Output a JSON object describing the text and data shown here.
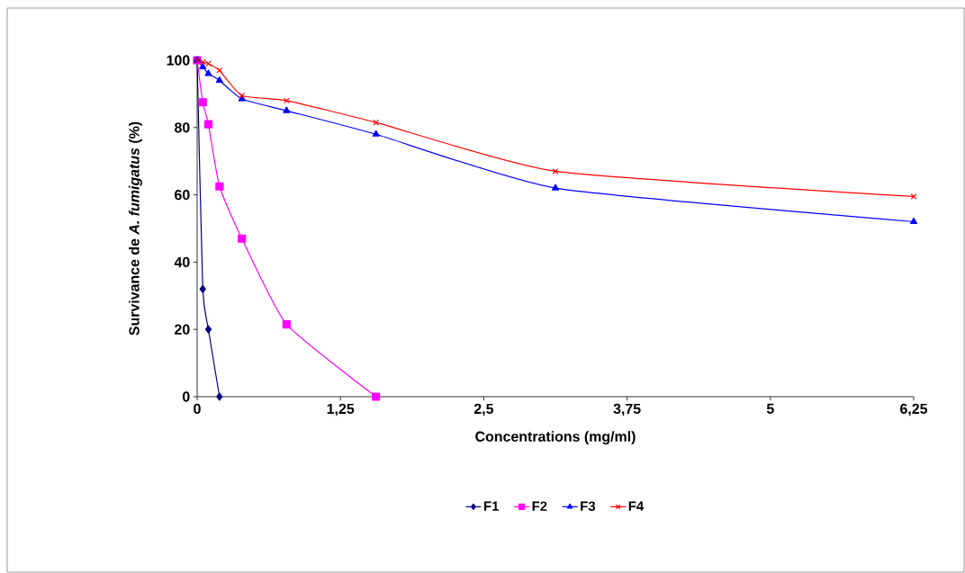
{
  "chart_data": {
    "type": "line",
    "xlabel": "Concentrations (mg/ml)",
    "ylabel": "Survivance de *A. fumigatus* (%)",
    "xlim": [
      0,
      6.25
    ],
    "xticks": [
      0,
      {
        "value": 1.25,
        "label": "1,25"
      },
      {
        "value": 2.5,
        "label": "2,5"
      },
      {
        "value": 3.75,
        "label": "3,75"
      },
      5,
      {
        "value": 6.25,
        "label": "6,25"
      }
    ],
    "ylim": [
      0,
      100
    ],
    "yticks": [
      0,
      20,
      40,
      60,
      80,
      100
    ],
    "legend": "bottom",
    "series": [
      {
        "name": "F1",
        "color": "#000080",
        "marker": "diamond",
        "x": [
          0,
          0.049,
          0.098,
          0.195
        ],
        "values": [
          100,
          32,
          20,
          0
        ]
      },
      {
        "name": "F2",
        "color": "#ff00ff",
        "marker": "square",
        "x": [
          0,
          0.049,
          0.098,
          0.195,
          0.39,
          0.78,
          1.56
        ],
        "values": [
          100,
          87.5,
          81,
          62.5,
          47,
          21.5,
          0
        ]
      },
      {
        "name": "F3",
        "color": "#0000ff",
        "marker": "triangle",
        "x": [
          0,
          0.049,
          0.098,
          0.195,
          0.39,
          0.78,
          1.56,
          3.125,
          6.25
        ],
        "values": [
          100,
          98,
          96,
          94,
          88.5,
          85,
          78,
          62,
          52
        ]
      },
      {
        "name": "F4",
        "color": "#ff0000",
        "marker": "cross",
        "x": [
          0,
          0.049,
          0.098,
          0.195,
          0.39,
          0.78,
          1.56,
          3.125,
          6.25
        ],
        "values": [
          100,
          99.5,
          99,
          97,
          89.5,
          88,
          81.5,
          67,
          59.5
        ]
      }
    ]
  }
}
